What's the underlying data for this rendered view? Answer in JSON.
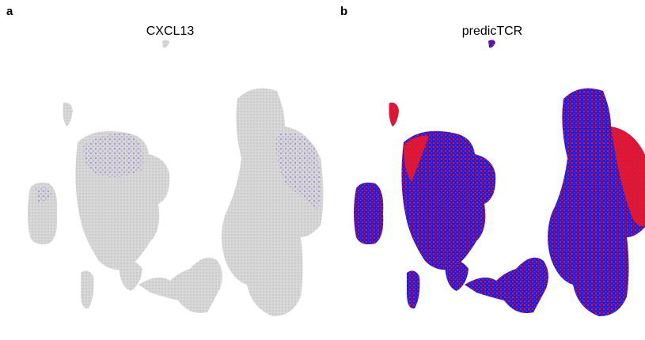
{
  "panels": [
    {
      "letter": "a",
      "title": "CXCL13"
    },
    {
      "letter": "b",
      "title": "predicTCR"
    }
  ]
}
